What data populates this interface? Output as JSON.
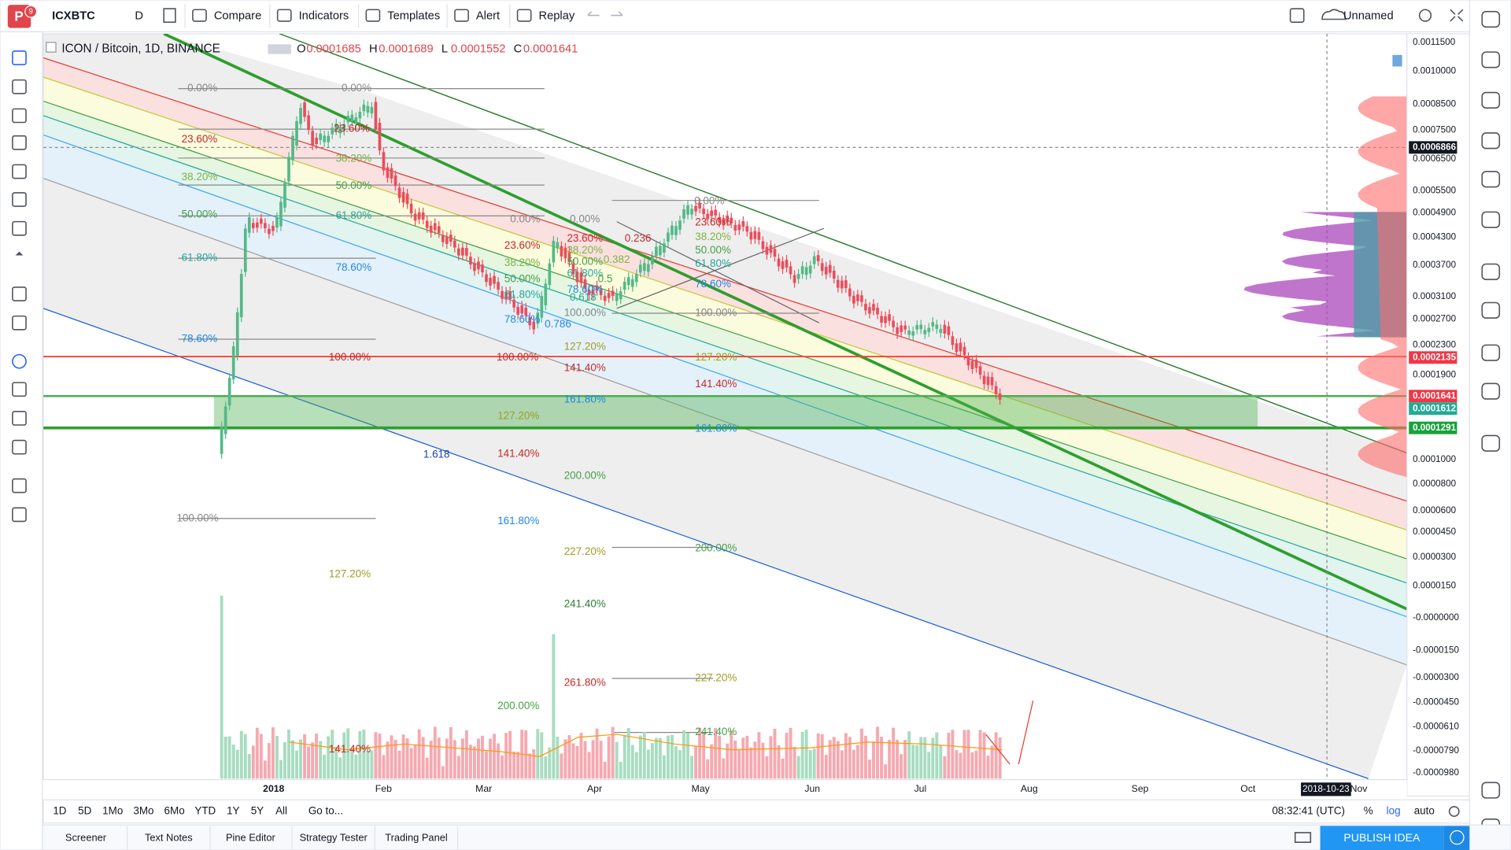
{
  "toolbar": {
    "badge": "9",
    "symbol": "ICXBTC",
    "interval": "D",
    "items": [
      "Compare",
      "Indicators",
      "Templates",
      "Alert",
      "Replay"
    ],
    "layout_name": "Unnamed"
  },
  "legend": {
    "title": "ICON / Bitcoin, 1D, BINANCE",
    "ohlc": [
      {
        "key": "O",
        "value": "0.0001685"
      },
      {
        "key": "H",
        "value": "0.0001689"
      },
      {
        "key": "L",
        "value": "0.0001552"
      },
      {
        "key": "C",
        "value": "0.0001641"
      }
    ]
  },
  "price_axis": {
    "labels": [
      "0.0011500",
      "0.0010000",
      "0.0008500",
      "0.0007500",
      "0.0006500",
      "0.0005500",
      "0.0004900",
      "0.0004300",
      "0.0003700",
      "0.0003100",
      "0.0002700",
      "0.0002300",
      "0.0001900",
      "0.0001000",
      "0.0000800",
      "0.0000600",
      "0.0000450",
      "0.0000300",
      "0.0000150",
      "-0.0000000",
      "-0.0000150",
      "-0.0000300",
      "-0.0000450",
      "-0.0000610",
      "-0.0000790",
      "-0.0000980"
    ],
    "badges": [
      "0.0006866",
      "0.0002135",
      "0.0001641",
      "0.0001612",
      "0.0001291"
    ]
  },
  "time_axis": {
    "labels": [
      "2018",
      "Feb",
      "Mar",
      "Apr",
      "May",
      "Jun",
      "Jul",
      "Aug",
      "Sep",
      "Oct",
      "Nov"
    ],
    "cursor_date": "2018-10-23"
  },
  "fib_labels": [
    "0.00%",
    "0.00%",
    "23.60%",
    "23.60%",
    "38.20%",
    "38.20%",
    "50.00%",
    "50.00%",
    "61.80%",
    "61.80%",
    "78.60%",
    "78.60%",
    "100.00%",
    "100.00%",
    "100.00%",
    "127.20%",
    "1.618",
    "0.00%",
    "23.60%",
    "38.20%",
    "50.00%",
    "61.80%",
    "78.60%",
    "141.40%",
    "161.80%",
    "127.20%",
    "200.00%",
    "141.40%",
    "0.00%",
    "23.60%",
    "38.20%",
    "50.00%",
    "61.80%",
    "78.60%",
    "100.00%",
    "127.20%",
    "141.40%",
    "161.80%",
    "200.00%",
    "227.20%",
    "241.40%",
    "261.80%",
    "0.236",
    "0.382",
    "0.5",
    "0.618",
    "0.786",
    "0.00%",
    "23.60%",
    "38.20%",
    "50.00%",
    "61.80%",
    "78.60%",
    "100.00%",
    "127.20%",
    "141.40%",
    "161.80%",
    "200.00%",
    "227.20%",
    "241.40%"
  ],
  "range_bar": {
    "ranges": [
      "1D",
      "5D",
      "1Mo",
      "3Mo",
      "6Mo",
      "YTD",
      "1Y",
      "5Y",
      "All"
    ],
    "goto": "Go to...",
    "clock": "08:32:41 (UTC)",
    "options": [
      "%",
      "log",
      "auto"
    ]
  },
  "bottom_tabs": [
    "Screener",
    "Text Notes",
    "Pine Editor",
    "Strategy Tester",
    "Trading Panel"
  ],
  "publish": "PUBLISH IDEA"
}
